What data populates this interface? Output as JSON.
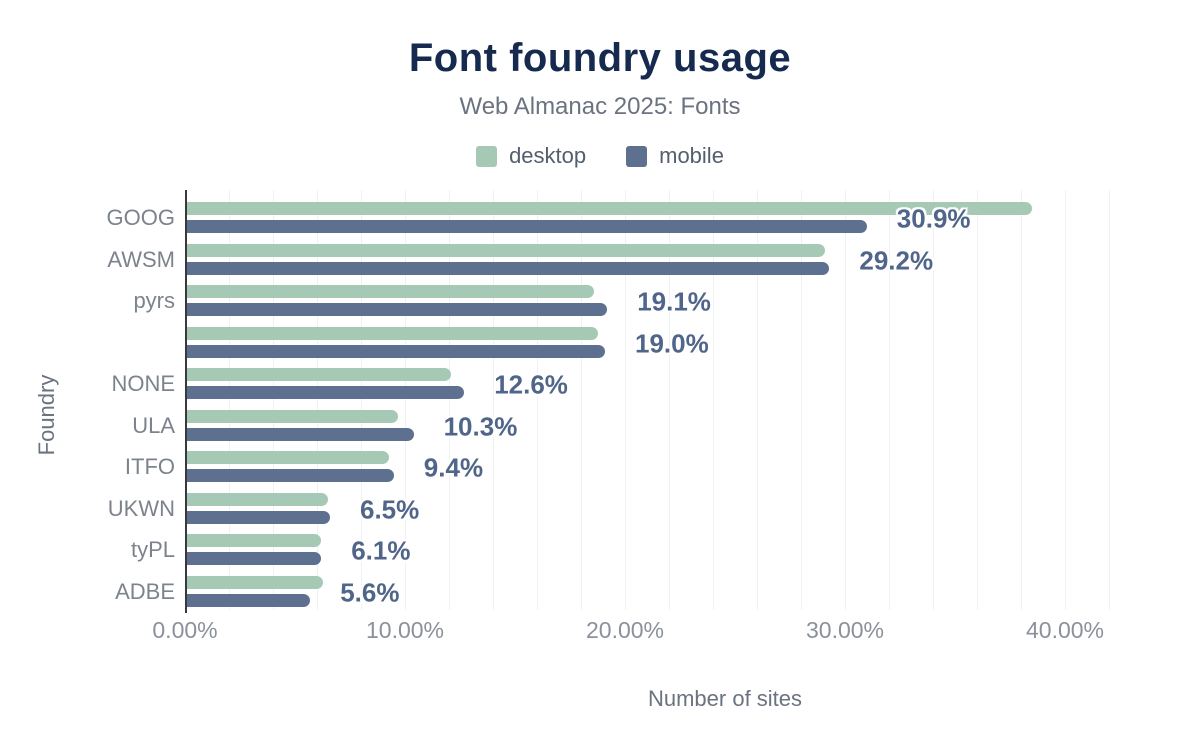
{
  "chart_data": {
    "type": "bar",
    "orientation": "horizontal",
    "title": "Font foundry usage",
    "subtitle": "Web Almanac 2025: Fonts",
    "xlabel": "Number of sites",
    "ylabel": "Foundry",
    "categories": [
      "GOOG",
      "AWSM",
      "pyrs",
      "",
      "NONE",
      "ULA",
      "ITFO",
      "UKWN",
      "tyPL",
      "ADBE"
    ],
    "series": [
      {
        "name": "desktop",
        "color": "#a6c9b5",
        "values": [
          38.4,
          29.0,
          18.5,
          18.7,
          12.0,
          9.6,
          9.2,
          6.4,
          6.1,
          6.2
        ]
      },
      {
        "name": "mobile",
        "color": "#5d7090",
        "values": [
          30.9,
          29.2,
          19.1,
          19.0,
          12.6,
          10.3,
          9.4,
          6.5,
          6.1,
          5.6
        ]
      }
    ],
    "data_labels": [
      "30.9%",
      "29.2%",
      "19.1%",
      "19.0%",
      "12.6%",
      "10.3%",
      "9.4%",
      "6.5%",
      "6.1%",
      "5.6%"
    ],
    "data_label_series": "mobile",
    "x_ticks": [
      "0.00%",
      "10.00%",
      "20.00%",
      "30.00%",
      "40.00%"
    ],
    "xlim": [
      0,
      40
    ],
    "grid": true,
    "legend_position": "top",
    "colors": {
      "title": "#152a4e",
      "subtitle": "#6b7380",
      "axis_text": "#8b919b",
      "category_text": "#7d838c",
      "data_label": "#50658a",
      "axis_line": "#37393e",
      "gridline": "#f0f1f3",
      "background": "#ffffff"
    }
  }
}
